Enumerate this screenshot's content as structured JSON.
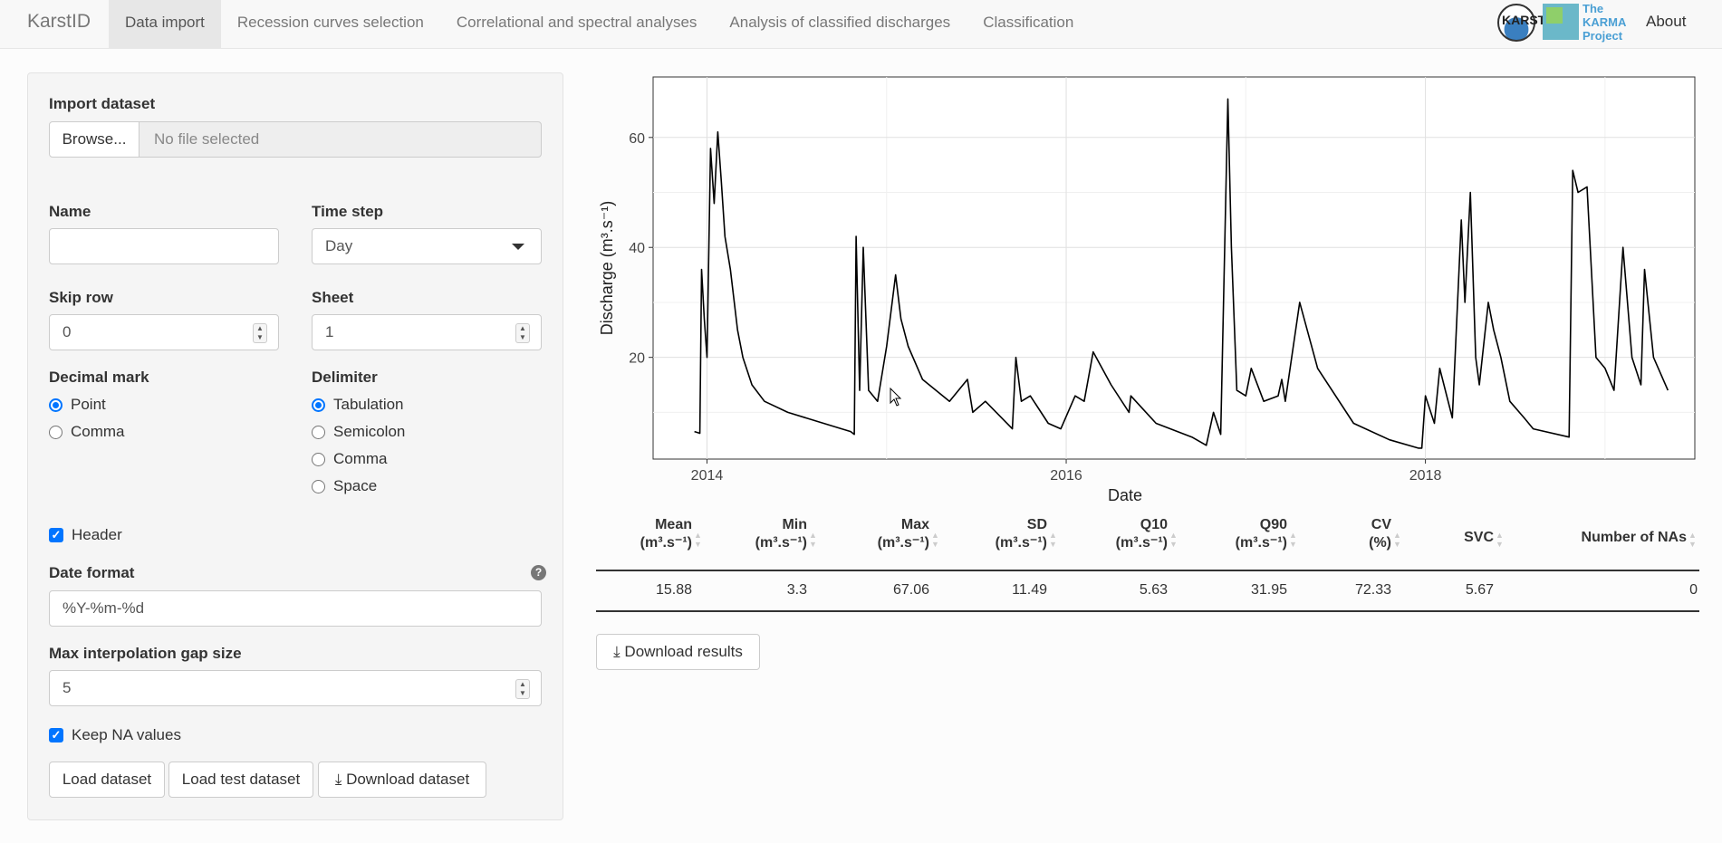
{
  "navbar": {
    "brand": "KarstID",
    "tabs": [
      "Data import",
      "Recession curves selection",
      "Correlational and spectral analyses",
      "Analysis of classified discharges",
      "Classification"
    ],
    "logo1_text": "KARST",
    "logo2_lines": [
      "The",
      "KARMA",
      "Project"
    ],
    "about": "About"
  },
  "sidebar": {
    "import_label": "Import dataset",
    "browse_label": "Browse...",
    "file_placeholder": "No file selected",
    "name_label": "Name",
    "name_value": "",
    "timestep_label": "Time step",
    "timestep_value": "Day",
    "skiprow_label": "Skip row",
    "skiprow_value": "0",
    "sheet_label": "Sheet",
    "sheet_value": "1",
    "decimal_label": "Decimal mark",
    "decimal_options": [
      "Point",
      "Comma"
    ],
    "delimiter_label": "Delimiter",
    "delimiter_options": [
      "Tabulation",
      "Semicolon",
      "Comma",
      "Space"
    ],
    "header_label": "Header",
    "dateformat_label": "Date format",
    "dateformat_value": "%Y-%m-%d",
    "maxgap_label": "Max interpolation gap size",
    "maxgap_value": "5",
    "keepna_label": "Keep NA values",
    "load_btn": "Load dataset",
    "loadtest_btn": "Load test dataset",
    "download_btn": "Download dataset"
  },
  "chart_data": {
    "type": "line",
    "xlabel": "Date",
    "ylabel": "Discharge (m³.s⁻¹)",
    "xticks": [
      "2014",
      "2016",
      "2018"
    ],
    "yticks": [
      20,
      40,
      60
    ],
    "ylim": [
      1.5,
      71
    ],
    "xlim": [
      2013.7,
      2019.5
    ],
    "grid": true,
    "x": [
      2013.93,
      2013.96,
      2013.97,
      2013.985,
      2014.0,
      2014.02,
      2014.04,
      2014.06,
      2014.08,
      2014.1,
      2014.13,
      2014.17,
      2014.2,
      2014.25,
      2014.32,
      2014.45,
      2014.6,
      2014.75,
      2014.8,
      2014.82,
      2014.83,
      2014.85,
      2014.87,
      2014.9,
      2014.95,
      2015.0,
      2015.05,
      2015.08,
      2015.12,
      2015.2,
      2015.35,
      2015.45,
      2015.48,
      2015.55,
      2015.7,
      2015.72,
      2015.75,
      2015.8,
      2015.9,
      2015.97,
      2016.05,
      2016.1,
      2016.15,
      2016.25,
      2016.35,
      2016.36,
      2016.5,
      2016.7,
      2016.78,
      2016.82,
      2016.86,
      2016.9,
      2016.92,
      2016.95,
      2017.0,
      2017.03,
      2017.1,
      2017.18,
      2017.2,
      2017.22,
      2017.3,
      2017.4,
      2017.6,
      2017.8,
      2017.96,
      2017.98,
      2018.0,
      2018.05,
      2018.08,
      2018.15,
      2018.2,
      2018.22,
      2018.25,
      2018.28,
      2018.3,
      2018.35,
      2018.38,
      2018.42,
      2018.47,
      2018.55,
      2018.6,
      2018.8,
      2018.82,
      2018.85,
      2018.9,
      2018.95,
      2019.0,
      2019.05,
      2019.1,
      2019.15,
      2019.2,
      2019.22,
      2019.27,
      2019.35
    ],
    "y": [
      6.5,
      6.2,
      36,
      27,
      20,
      58,
      48,
      61,
      52,
      42,
      36,
      25,
      20,
      15,
      12,
      10,
      8.5,
      7,
      6.5,
      6,
      42,
      14,
      40,
      14,
      12,
      22,
      35,
      27,
      22,
      16,
      12,
      16,
      10,
      12,
      7,
      20,
      12,
      13,
      8,
      7,
      13,
      12,
      21,
      15,
      10,
      13,
      8,
      5.5,
      4,
      10,
      6,
      67,
      40,
      14,
      13,
      18,
      12,
      13,
      16,
      12,
      30,
      18,
      8,
      5,
      3.5,
      3.5,
      13,
      8,
      18,
      9,
      45,
      30,
      50,
      20,
      15,
      30,
      25,
      20,
      12,
      9,
      7,
      5.5,
      54,
      50,
      51,
      20,
      18,
      14,
      40,
      20,
      15,
      36,
      20,
      14
    ],
    "color": "#000000"
  },
  "table": {
    "headers": [
      [
        "Mean",
        "(m³.s⁻¹)"
      ],
      [
        "Min",
        "(m³.s⁻¹)"
      ],
      [
        "Max",
        "(m³.s⁻¹)"
      ],
      [
        "SD",
        "(m³.s⁻¹)"
      ],
      [
        "Q10",
        "(m³.s⁻¹)"
      ],
      [
        "Q90",
        "(m³.s⁻¹)"
      ],
      [
        "CV",
        "(%)"
      ],
      [
        "SVC",
        ""
      ],
      [
        "Number of NAs",
        ""
      ]
    ],
    "row": [
      "15.88",
      "3.3",
      "67.06",
      "11.49",
      "5.63",
      "31.95",
      "72.33",
      "5.67",
      "0"
    ]
  },
  "download_results": "Download results"
}
